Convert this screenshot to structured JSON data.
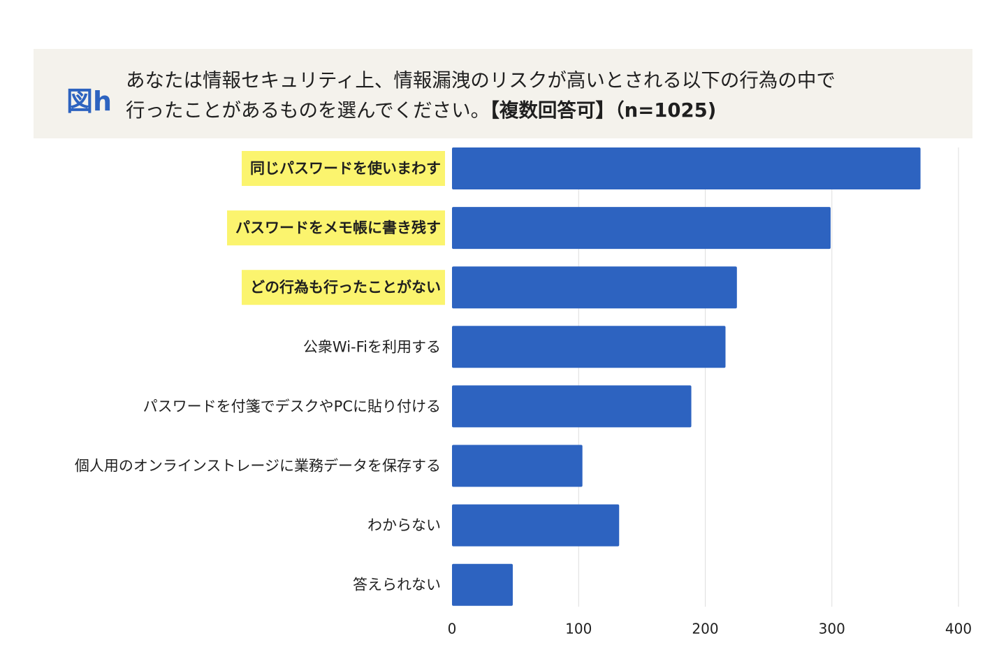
{
  "figure": {
    "label": "図h",
    "question_line1": "あなたは情報セキュリティ上、情報漏洩のリスクが高いとされる以下の行為の中で",
    "question_line2": "行ったことがあるものを選んでください。",
    "question_note": "【複数回答可】（n=1025)"
  },
  "chart_data": {
    "type": "bar",
    "orientation": "horizontal",
    "categories": [
      "同じパスワードを使いまわす",
      "パスワードをメモ帳に書き残す",
      "どの行為も行ったことがない",
      "公衆Wi-Fiを利用する",
      "パスワードを付箋でデスクやPCに貼り付ける",
      "個人用のオンラインストレージに業務データを保存する",
      "わからない",
      "答えられない"
    ],
    "values": [
      370,
      299,
      225,
      216,
      189,
      103,
      132,
      48
    ],
    "highlighted": [
      true,
      true,
      true,
      false,
      false,
      false,
      false,
      false
    ],
    "xlim": [
      0,
      400
    ],
    "xticks": [
      0,
      100,
      200,
      300,
      400
    ],
    "grid": true,
    "bar_color": "#2d63c0",
    "highlight_color": "#fbf46e",
    "grid_color": "#dedede"
  }
}
